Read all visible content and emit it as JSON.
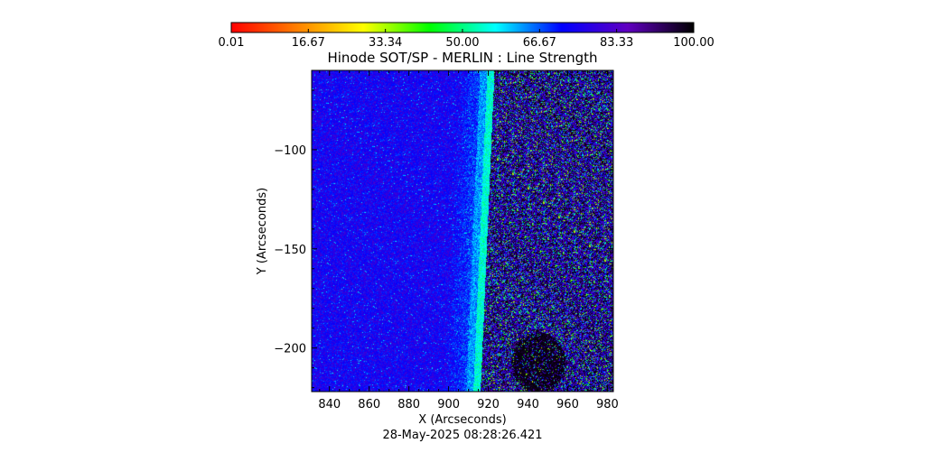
{
  "chart_data": {
    "type": "heatmap",
    "title": "Hinode SOT/SP - MERLIN : Line Strength",
    "xlabel": "X (Arcseconds)",
    "ylabel": "Y (Arcseconds)",
    "timestamp": "28-May-2025 08:28:26.421",
    "xlim": [
      831,
      983
    ],
    "ylim": [
      -222,
      -60
    ],
    "x_ticks": [
      840,
      860,
      880,
      900,
      920,
      940,
      960,
      980
    ],
    "x_tick_labels": [
      "840",
      "860",
      "880",
      "900",
      "920",
      "940",
      "960",
      "980"
    ],
    "y_ticks": [
      -100,
      -150,
      -200
    ],
    "y_tick_labels": [
      "−100",
      "−150",
      "−200"
    ],
    "colorbar": {
      "min": 0.01,
      "max": 100.0,
      "tick_values": [
        0.01,
        16.67,
        33.34,
        50.0,
        66.67,
        83.33,
        100.0
      ],
      "tick_labels": [
        "0.01",
        "16.67",
        "33.34",
        "50.00",
        "66.67",
        "83.33",
        "100.00"
      ],
      "colors": [
        "#ff0000",
        "#ff8000",
        "#ffff00",
        "#00ff00",
        "#00ffff",
        "#0000ff",
        "#6000c0",
        "#000000"
      ]
    },
    "limb_boundary": {
      "x_at_top": 922,
      "x_at_bottom": 915
    },
    "regions": {
      "disk_mean_value": 75,
      "limb_edge_value": 55,
      "offlimb_mean_value": 80
    },
    "grid": false
  }
}
